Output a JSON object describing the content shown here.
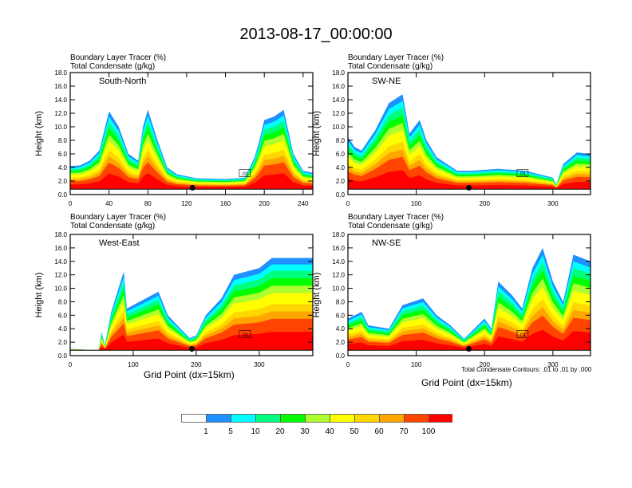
{
  "title": "2013-08-17_00:00:00",
  "chart_data": [
    {
      "type": "heatmap",
      "title": "South-North",
      "subtitle_lines": [
        "Boundary Layer Tracer   (%)",
        "Total Condensate   (g/kg)"
      ],
      "xlabel": "",
      "ylabel": "Height (km)",
      "xlim": [
        0,
        250
      ],
      "ylim": [
        0,
        18
      ],
      "xticks": [
        "0",
        "40",
        "80",
        "120",
        "160",
        "200",
        "240"
      ],
      "xtick_values": [
        0,
        40,
        80,
        120,
        160,
        200,
        240
      ],
      "yticks": [
        "0.0",
        "2.0",
        "4.0",
        "6.0",
        "8.0",
        "10.0",
        "12.0",
        "14.0",
        "16.0",
        "18.0"
      ],
      "marker_x": 126,
      "marker_y": 1.0,
      "contour_label": ".01",
      "profile": [
        [
          0,
          4.2
        ],
        [
          10,
          4.3
        ],
        [
          20,
          5.0
        ],
        [
          30,
          6.5
        ],
        [
          40,
          12.3
        ],
        [
          50,
          10
        ],
        [
          60,
          6
        ],
        [
          70,
          5
        ],
        [
          75,
          10
        ],
        [
          80,
          12.5
        ],
        [
          90,
          8
        ],
        [
          100,
          4
        ],
        [
          110,
          3.0
        ],
        [
          130,
          2.4
        ],
        [
          160,
          2.3
        ],
        [
          180,
          2.5
        ],
        [
          190,
          5.5
        ],
        [
          195,
          8.0
        ],
        [
          200,
          11
        ],
        [
          210,
          11.5
        ],
        [
          220,
          12.5
        ],
        [
          230,
          6
        ],
        [
          240,
          3.5
        ],
        [
          250,
          3.2
        ]
      ]
    },
    {
      "type": "heatmap",
      "title": "SW-NE",
      "subtitle_lines": [
        "Boundary Layer Tracer   (%)",
        "Total Condensate   (g/kg)"
      ],
      "xlabel": "",
      "ylabel": "Height (km)",
      "xlim": [
        0,
        355
      ],
      "ylim": [
        0,
        18
      ],
      "xticks": [
        "0",
        "100",
        "200",
        "300"
      ],
      "xtick_values": [
        0,
        100,
        200,
        300
      ],
      "yticks": [
        "0.0",
        "2.0",
        "4.0",
        "6.0",
        "8.0",
        "10.0",
        "12.0",
        "14.0",
        "16.0",
        "18.0"
      ],
      "marker_x": 177,
      "marker_y": 1.0,
      "contour_label": ".01",
      "profile": [
        [
          0,
          8.5
        ],
        [
          10,
          7
        ],
        [
          20,
          6.5
        ],
        [
          40,
          9.5
        ],
        [
          60,
          13.5
        ],
        [
          80,
          14.8
        ],
        [
          90,
          9
        ],
        [
          105,
          11
        ],
        [
          115,
          8
        ],
        [
          130,
          5.5
        ],
        [
          160,
          3.5
        ],
        [
          180,
          3.5
        ],
        [
          220,
          3.8
        ],
        [
          260,
          3.5
        ],
        [
          300,
          2.5
        ],
        [
          305,
          1.5
        ],
        [
          315,
          4.5
        ],
        [
          335,
          6.2
        ],
        [
          355,
          6.0
        ]
      ]
    },
    {
      "type": "heatmap",
      "title": "West-East",
      "subtitle_lines": [
        "Boundary Layer Tracer   (%)",
        "Total Condensate   (g/kg)"
      ],
      "xlabel": "Grid Point (dx=15km)",
      "ylabel": "Height (km)",
      "xlim": [
        0,
        385
      ],
      "ylim": [
        0,
        18
      ],
      "xticks": [
        "0",
        "100",
        "200",
        "300"
      ],
      "xtick_values": [
        0,
        100,
        200,
        300
      ],
      "yticks": [
        "0.0",
        "2.0",
        "4.0",
        "6.0",
        "8.0",
        "10.0",
        "12.0",
        "14.0",
        "16.0",
        "18.0"
      ],
      "marker_x": 193,
      "marker_y": 1.0,
      "contour_label": ".01",
      "profile": [
        [
          0,
          1.0
        ],
        [
          45,
          0.8
        ],
        [
          50,
          3.5
        ],
        [
          55,
          1.5
        ],
        [
          65,
          6.5
        ],
        [
          85,
          12.5
        ],
        [
          90,
          7
        ],
        [
          140,
          9.5
        ],
        [
          155,
          6
        ],
        [
          175,
          4
        ],
        [
          190,
          2.6
        ],
        [
          200,
          3
        ],
        [
          215,
          6
        ],
        [
          240,
          8.5
        ],
        [
          260,
          12
        ],
        [
          300,
          13
        ],
        [
          320,
          14.5
        ],
        [
          350,
          14.5
        ],
        [
          385,
          14.5
        ]
      ]
    },
    {
      "type": "heatmap",
      "title": "NW-SE",
      "subtitle_lines": [
        "Boundary Layer Tracer   (%)",
        "Total Condensate   (g/kg)"
      ],
      "xlabel": "Grid Point (dx=15km)",
      "ylabel": "Height (km)",
      "xlim": [
        0,
        355
      ],
      "ylim": [
        0,
        18
      ],
      "xticks": [
        "0",
        "100",
        "200",
        "300"
      ],
      "xtick_values": [
        0,
        100,
        200,
        300
      ],
      "yticks": [
        "0.0",
        "2.0",
        "4.0",
        "6.0",
        "8.0",
        "10.0",
        "12.0",
        "14.0",
        "16.0",
        "18.0"
      ],
      "marker_x": 177,
      "marker_y": 1.0,
      "contour_label": ".01",
      "contour_note": "Total Condensate Contours: .01 to .01 by .000",
      "profile": [
        [
          0,
          5.5
        ],
        [
          20,
          6.5
        ],
        [
          30,
          4.5
        ],
        [
          60,
          4.0
        ],
        [
          80,
          7.5
        ],
        [
          110,
          8.5
        ],
        [
          130,
          6
        ],
        [
          150,
          4.5
        ],
        [
          170,
          2.5
        ],
        [
          200,
          5.5
        ],
        [
          210,
          4
        ],
        [
          220,
          11
        ],
        [
          240,
          9
        ],
        [
          255,
          7
        ],
        [
          270,
          13
        ],
        [
          285,
          16
        ],
        [
          300,
          11
        ],
        [
          315,
          8
        ],
        [
          330,
          15
        ],
        [
          355,
          14
        ]
      ]
    }
  ],
  "colorbar": {
    "colors": [
      "#ffffff",
      "#1e90ff",
      "#00ffff",
      "#00ff7f",
      "#00ff00",
      "#adff2f",
      "#ffff00",
      "#ffd700",
      "#ffa500",
      "#ff4500",
      "#ff0000"
    ],
    "labels": [
      "1",
      "5",
      "10",
      "20",
      "30",
      "40",
      "50",
      "60",
      "70",
      "100"
    ]
  }
}
